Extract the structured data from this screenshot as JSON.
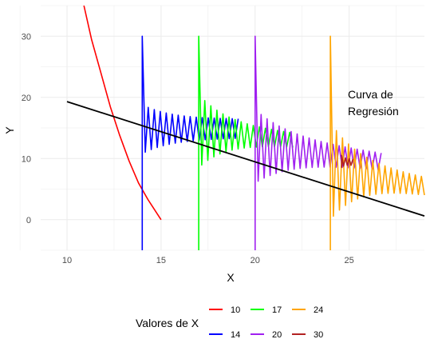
{
  "chart_data": {
    "type": "line",
    "title": "",
    "xlabel": "X",
    "ylabel": "Y",
    "xlim": [
      8.6,
      29
    ],
    "ylim": [
      -5,
      35
    ],
    "x_ticks": [
      10,
      15,
      20,
      25
    ],
    "y_ticks": [
      0,
      10,
      20,
      30
    ],
    "grid": true,
    "annotation": {
      "lines": [
        "Curva de",
        "Regresión"
      ],
      "x": 25,
      "y": 19.5
    },
    "regression_line": {
      "x": [
        10,
        29
      ],
      "y": [
        19.3,
        0.6
      ],
      "color": "#000000"
    },
    "legend": {
      "title": "Valores de X",
      "position": "bottom",
      "items": [
        {
          "label": "10",
          "color": "#ff0000"
        },
        {
          "label": "14",
          "color": "#0000ff"
        },
        {
          "label": "17",
          "color": "#00ff00"
        },
        {
          "label": "20",
          "color": "#a020f0"
        },
        {
          "label": "24",
          "color": "#ffa500"
        },
        {
          "label": "30",
          "color": "#b22222"
        }
      ]
    },
    "series": [
      {
        "name": "10",
        "color": "#ff0000",
        "kind": "decay",
        "x": [
          10.9,
          11.3,
          11.8,
          12.3,
          12.8,
          13.3,
          13.8,
          14.3,
          15.0
        ],
        "y": [
          35,
          29.5,
          24.0,
          18.5,
          13.8,
          9.6,
          6.0,
          3.3,
          0.0
        ]
      },
      {
        "name": "14",
        "color": "#0000ff",
        "kind": "oscillation",
        "start": 14,
        "end": 19.1,
        "center_start": 14.8,
        "center_end": 14.9,
        "spike_top": 30,
        "spike_bottom": -5,
        "amp_near": 4.0,
        "amp_far": 1.5,
        "period": 0.32
      },
      {
        "name": "17",
        "color": "#00ff00",
        "kind": "oscillation",
        "start": 17,
        "end": 22.0,
        "center_start": 14.5,
        "center_end": 13.0,
        "spike_top": 30,
        "spike_bottom": -5,
        "amp_near": 6.0,
        "amp_far": 1.0,
        "period": 0.32
      },
      {
        "name": "20",
        "color": "#a020f0",
        "kind": "oscillation",
        "start": 20,
        "end": 26.7,
        "center_start": 12.0,
        "center_end": 9.5,
        "spike_top": 30,
        "spike_bottom": -5,
        "amp_near": 6.0,
        "amp_far": 1.2,
        "period": 0.32
      },
      {
        "name": "24",
        "color": "#ffa500",
        "kind": "oscillation",
        "start": 24,
        "end": 29,
        "center_start": 8.0,
        "center_end": 5.5,
        "spike_top": 30,
        "spike_bottom": -5,
        "amp_near": 8.0,
        "amp_far": 1.2,
        "period": 0.32
      },
      {
        "name": "30",
        "color": "#b22222",
        "kind": "oscillation",
        "start": 24.6,
        "end": 25.2,
        "center_start": 9.5,
        "center_end": 9.4,
        "spike_top": 10.5,
        "spike_bottom": 8.5,
        "amp_near": 0.9,
        "amp_far": 0.5,
        "period": 0.2
      }
    ]
  }
}
